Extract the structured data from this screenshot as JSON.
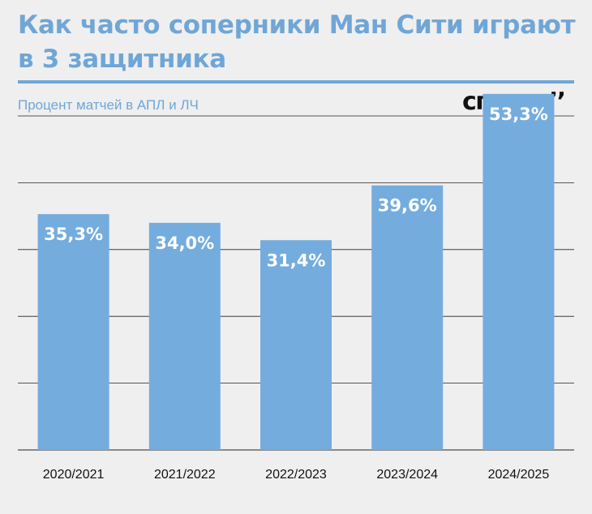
{
  "header": {
    "title": "Как часто соперники Ман Сити играют в 3 защитника",
    "subtitle": "Процент матчей в АПЛ и ЛЧ",
    "logo_text": "спортс’’"
  },
  "colors": {
    "accent": "#6fa6d6",
    "bar": "#74acde",
    "background": "#efefef",
    "grid": "#222222"
  },
  "chart_data": {
    "type": "bar",
    "title": "Как часто соперники Ман Сити играют в 3 защитника",
    "subtitle": "Процент матчей в АПЛ и ЛЧ",
    "categories": [
      "2020/2021",
      "2021/2022",
      "2022/2023",
      "2023/2024",
      "2024/2025"
    ],
    "values": [
      35.3,
      34.0,
      31.4,
      39.6,
      53.3
    ],
    "data_labels": [
      "35,3%",
      "34,0%",
      "31,4%",
      "39,6%",
      "53,3%"
    ],
    "xlabel": "",
    "ylabel": "",
    "ylim": [
      0,
      50
    ],
    "grid": true,
    "legend": "none"
  }
}
